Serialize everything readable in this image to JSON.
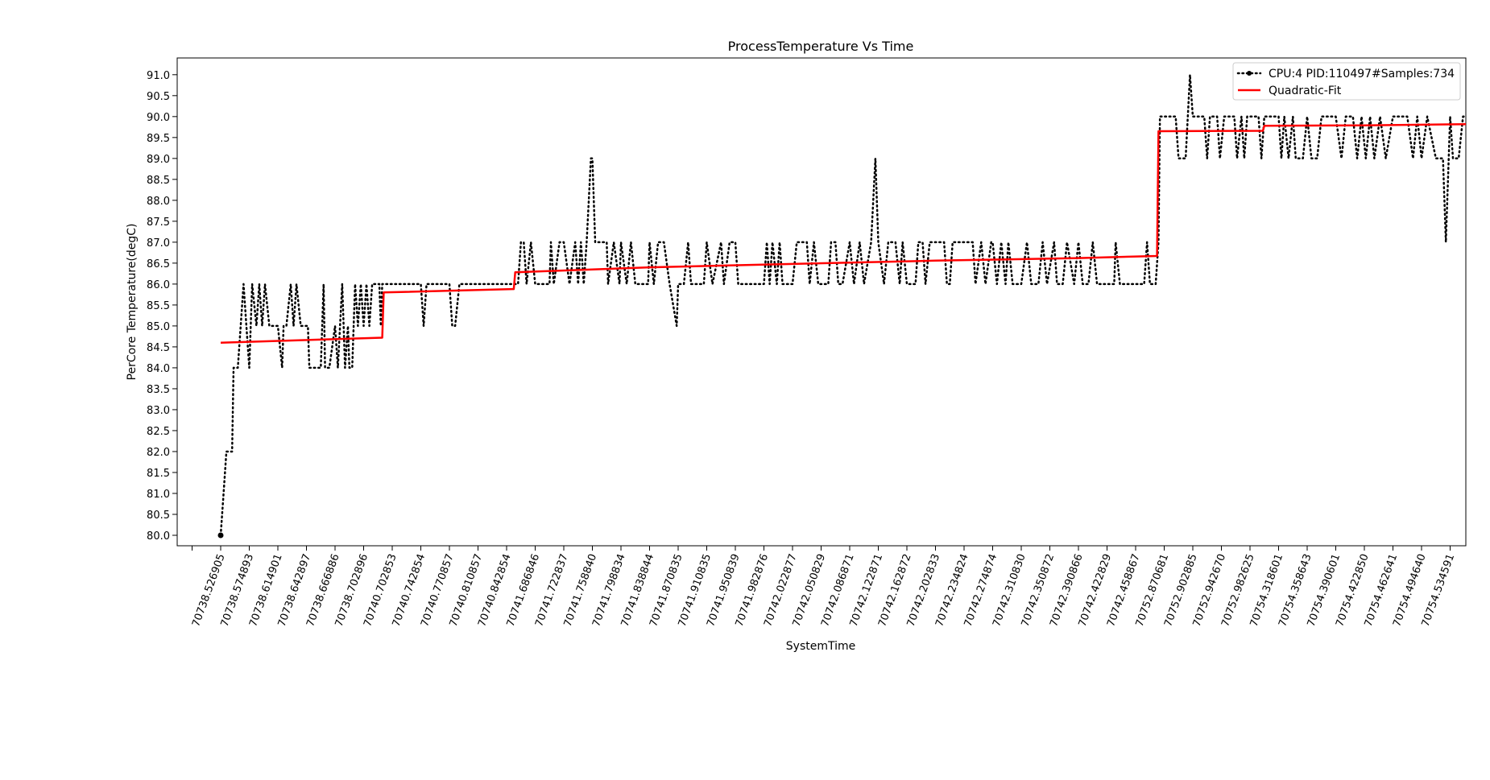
{
  "chart_data": {
    "type": "line",
    "title": "ProcessTemperature Vs Time",
    "xlabel": "SystemTime",
    "ylabel": "PerCore Temperature(degC)",
    "ylim": [
      79.75,
      91.4
    ],
    "yticks": [
      80.0,
      80.5,
      81.0,
      81.5,
      82.0,
      82.5,
      83.0,
      83.5,
      84.0,
      84.5,
      85.0,
      85.5,
      86.0,
      86.5,
      87.0,
      87.5,
      88.0,
      88.5,
      89.0,
      89.5,
      90.0,
      90.5,
      91.0
    ],
    "xtick_labels": [
      "70738.526905",
      "70738.574893",
      "70738.614901",
      "70738.642897",
      "70738.666886",
      "70738.702896",
      "70740.702853",
      "70740.742854",
      "70740.770857",
      "70740.810857",
      "70740.842854",
      "70741.686846",
      "70741.722837",
      "70741.758840",
      "70741.798834",
      "70741.838844",
      "70741.870835",
      "70741.910835",
      "70741.950839",
      "70741.982876",
      "70742.022877",
      "70742.050829",
      "70742.086871",
      "70742.122871",
      "70742.162872",
      "70742.202833",
      "70742.234824",
      "70742.274874",
      "70742.310830",
      "70742.350872",
      "70742.390866",
      "70742.422829",
      "70742.458867",
      "70752.870681",
      "70752.902885",
      "70752.942670",
      "70752.982625",
      "70754.318601",
      "70754.358643",
      "70754.390601",
      "70754.422850",
      "70754.462641",
      "70754.494640",
      "70754.534591"
    ],
    "grid": false,
    "legend_position": "top-right",
    "samples": 734,
    "series": [
      {
        "name": "CPU:4 PID:110497#Samples:734",
        "color": "#000000",
        "style": "dotted",
        "points": [
          [
            0,
            80
          ],
          [
            0.1,
            81
          ],
          [
            0.2,
            82
          ],
          [
            0.4,
            82
          ],
          [
            0.45,
            84
          ],
          [
            0.6,
            84
          ],
          [
            0.8,
            86
          ],
          [
            0.9,
            85
          ],
          [
            1.0,
            84
          ],
          [
            1.1,
            86
          ],
          [
            1.25,
            85
          ],
          [
            1.35,
            86
          ],
          [
            1.45,
            85
          ],
          [
            1.55,
            86
          ],
          [
            1.7,
            85
          ],
          [
            1.8,
            85
          ],
          [
            2.0,
            85
          ],
          [
            2.15,
            84
          ],
          [
            2.2,
            85
          ],
          [
            2.3,
            85
          ],
          [
            2.45,
            86
          ],
          [
            2.55,
            85
          ],
          [
            2.65,
            86
          ],
          [
            2.8,
            85
          ],
          [
            3.05,
            85
          ],
          [
            3.1,
            84
          ],
          [
            3.5,
            84
          ],
          [
            3.6,
            86
          ],
          [
            3.65,
            84
          ],
          [
            3.8,
            84
          ],
          [
            4.0,
            85
          ],
          [
            4.1,
            84
          ],
          [
            4.25,
            86
          ],
          [
            4.35,
            84
          ],
          [
            4.45,
            85
          ],
          [
            4.5,
            84
          ],
          [
            4.6,
            84
          ],
          [
            4.7,
            86
          ],
          [
            4.8,
            85
          ],
          [
            4.9,
            86
          ],
          [
            5.0,
            85
          ],
          [
            5.1,
            86
          ],
          [
            5.2,
            85
          ],
          [
            5.3,
            86
          ],
          [
            5.4,
            86
          ],
          [
            5.5,
            86
          ],
          [
            5.55,
            86
          ],
          [
            5.6,
            85
          ],
          [
            5.65,
            86
          ],
          [
            6.0,
            86
          ],
          [
            6.5,
            86
          ],
          [
            7.0,
            86
          ],
          [
            7.1,
            85
          ],
          [
            7.2,
            86
          ],
          [
            7.5,
            86
          ],
          [
            8.0,
            86
          ],
          [
            8.1,
            85
          ],
          [
            8.2,
            85
          ],
          [
            8.35,
            86
          ],
          [
            9.0,
            86
          ],
          [
            9.3,
            86
          ],
          [
            9.5,
            86
          ],
          [
            10.0,
            86
          ],
          [
            10.4,
            86
          ],
          [
            10.5,
            87
          ],
          [
            10.6,
            87
          ],
          [
            10.7,
            86
          ],
          [
            10.85,
            87
          ],
          [
            11.0,
            86
          ],
          [
            11.5,
            86
          ],
          [
            11.55,
            87
          ],
          [
            11.65,
            86
          ],
          [
            11.85,
            87
          ],
          [
            12.0,
            87
          ],
          [
            12.2,
            86
          ],
          [
            12.4,
            87
          ],
          [
            12.5,
            86
          ],
          [
            12.6,
            87
          ],
          [
            12.7,
            86
          ],
          [
            12.8,
            87
          ],
          [
            12.95,
            89
          ],
          [
            13.0,
            89
          ],
          [
            13.1,
            87
          ],
          [
            13.5,
            87
          ],
          [
            13.55,
            86
          ],
          [
            13.75,
            87
          ],
          [
            13.95,
            86
          ],
          [
            14.0,
            87
          ],
          [
            14.2,
            86
          ],
          [
            14.35,
            87
          ],
          [
            14.5,
            86
          ],
          [
            14.95,
            86
          ],
          [
            15.0,
            87
          ],
          [
            15.15,
            86
          ],
          [
            15.3,
            87
          ],
          [
            15.5,
            87
          ],
          [
            15.7,
            86
          ],
          [
            15.95,
            85
          ],
          [
            16.0,
            86
          ],
          [
            16.2,
            86
          ],
          [
            16.35,
            87
          ],
          [
            16.45,
            86
          ],
          [
            16.9,
            86
          ],
          [
            17.0,
            87
          ],
          [
            17.2,
            86
          ],
          [
            17.5,
            87
          ],
          [
            17.6,
            86
          ],
          [
            17.8,
            87
          ],
          [
            18.0,
            87
          ],
          [
            18.1,
            86
          ],
          [
            19.0,
            86
          ],
          [
            19.1,
            87
          ],
          [
            19.2,
            86
          ],
          [
            19.3,
            87
          ],
          [
            19.45,
            86
          ],
          [
            19.55,
            87
          ],
          [
            19.65,
            86
          ],
          [
            20.0,
            86
          ],
          [
            20.15,
            87
          ],
          [
            20.5,
            87
          ],
          [
            20.6,
            86
          ],
          [
            20.75,
            87
          ],
          [
            20.9,
            86
          ],
          [
            21.25,
            86
          ],
          [
            21.35,
            87
          ],
          [
            21.5,
            87
          ],
          [
            21.6,
            86
          ],
          [
            21.75,
            86
          ],
          [
            22.0,
            87
          ],
          [
            22.15,
            86
          ],
          [
            22.35,
            87
          ],
          [
            22.5,
            86
          ],
          [
            22.75,
            87
          ],
          [
            22.9,
            89
          ],
          [
            23.0,
            87
          ],
          [
            23.2,
            86
          ],
          [
            23.35,
            87
          ],
          [
            23.5,
            87
          ],
          [
            23.6,
            87
          ],
          [
            23.75,
            86
          ],
          [
            23.85,
            87
          ],
          [
            24.0,
            86
          ],
          [
            24.3,
            86
          ],
          [
            24.4,
            87
          ],
          [
            24.55,
            87
          ],
          [
            24.65,
            86
          ],
          [
            24.8,
            87
          ],
          [
            25.0,
            87
          ],
          [
            25.3,
            87
          ],
          [
            25.4,
            86
          ],
          [
            25.5,
            86
          ],
          [
            25.6,
            87
          ],
          [
            26.0,
            87
          ],
          [
            26.3,
            87
          ],
          [
            26.4,
            86
          ],
          [
            26.6,
            87
          ],
          [
            26.75,
            86
          ],
          [
            26.95,
            87
          ],
          [
            27.0,
            87
          ],
          [
            27.15,
            86
          ],
          [
            27.3,
            87
          ],
          [
            27.45,
            86
          ],
          [
            27.55,
            87
          ],
          [
            27.7,
            86
          ],
          [
            28.0,
            86
          ],
          [
            28.2,
            87
          ],
          [
            28.35,
            86
          ],
          [
            28.6,
            86
          ],
          [
            28.75,
            87
          ],
          [
            28.9,
            86
          ],
          [
            29.15,
            87
          ],
          [
            29.25,
            86
          ],
          [
            29.45,
            86
          ],
          [
            29.6,
            87
          ],
          [
            29.85,
            86
          ],
          [
            30.0,
            87
          ],
          [
            30.15,
            86
          ],
          [
            30.35,
            86
          ],
          [
            30.5,
            87
          ],
          [
            30.65,
            86
          ],
          [
            31.0,
            86
          ],
          [
            31.25,
            86
          ],
          [
            31.3,
            87
          ],
          [
            31.45,
            86
          ],
          [
            32.0,
            86
          ],
          [
            32.3,
            86
          ],
          [
            32.4,
            87
          ],
          [
            32.5,
            86
          ],
          [
            32.7,
            86
          ],
          [
            32.8,
            87
          ],
          [
            32.85,
            90
          ],
          [
            33.0,
            90
          ],
          [
            33.4,
            90
          ],
          [
            33.5,
            89
          ],
          [
            33.6,
            89
          ],
          [
            33.75,
            89
          ],
          [
            33.9,
            91
          ],
          [
            34.0,
            90
          ],
          [
            34.1,
            90
          ],
          [
            34.4,
            90
          ],
          [
            34.5,
            89
          ],
          [
            34.6,
            90
          ],
          [
            34.85,
            90
          ],
          [
            34.95,
            89
          ],
          [
            35.1,
            90
          ],
          [
            35.45,
            90
          ],
          [
            35.55,
            89
          ],
          [
            35.7,
            90
          ],
          [
            35.8,
            89
          ],
          [
            35.9,
            90
          ],
          [
            36.0,
            90
          ],
          [
            36.3,
            90
          ],
          [
            36.4,
            89
          ],
          [
            36.5,
            90
          ],
          [
            37.0,
            90
          ],
          [
            37.1,
            89
          ],
          [
            37.2,
            90
          ],
          [
            37.35,
            89
          ],
          [
            37.5,
            90
          ],
          [
            37.6,
            89
          ],
          [
            37.85,
            89
          ],
          [
            38.0,
            90
          ],
          [
            38.15,
            89
          ],
          [
            38.35,
            89
          ],
          [
            38.5,
            90
          ],
          [
            39.0,
            90
          ],
          [
            39.2,
            89
          ],
          [
            39.35,
            90
          ],
          [
            39.6,
            90
          ],
          [
            39.75,
            89
          ],
          [
            39.9,
            90
          ],
          [
            40.05,
            89
          ],
          [
            40.2,
            90
          ],
          [
            40.35,
            89
          ],
          [
            40.55,
            90
          ],
          [
            40.75,
            89
          ],
          [
            41.0,
            90
          ],
          [
            41.5,
            90
          ],
          [
            41.7,
            89
          ],
          [
            41.85,
            90
          ],
          [
            42.0,
            89
          ],
          [
            42.2,
            90
          ],
          [
            42.5,
            89
          ],
          [
            42.75,
            89
          ],
          [
            42.85,
            87
          ],
          [
            43.0,
            90
          ],
          [
            43.1,
            89
          ],
          [
            43.3,
            89
          ],
          [
            43.45,
            90
          ],
          [
            43.55,
            90
          ]
        ]
      },
      {
        "name": "Quadratic-Fit",
        "color": "#ff0000",
        "style": "solid",
        "points": [
          [
            0,
            84.6
          ],
          [
            5.65,
            84.72
          ],
          [
            5.7,
            85.8
          ],
          [
            10.25,
            85.88
          ],
          [
            10.3,
            86.28
          ],
          [
            15.0,
            86.4
          ],
          [
            20.0,
            86.48
          ],
          [
            25.0,
            86.56
          ],
          [
            30.0,
            86.62
          ],
          [
            32.75,
            86.67
          ],
          [
            32.8,
            89.65
          ],
          [
            36.45,
            89.66
          ],
          [
            36.5,
            89.78
          ],
          [
            40.0,
            89.79
          ],
          [
            43.55,
            89.82
          ]
        ]
      }
    ]
  }
}
